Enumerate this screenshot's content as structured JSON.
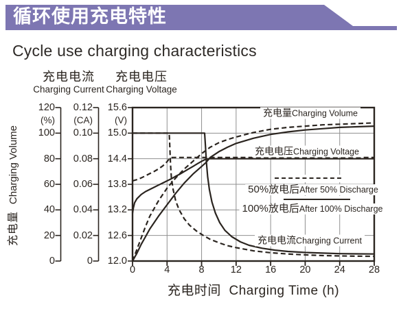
{
  "header": {
    "title_zh": "循环使用充电特性",
    "subtitle_en": "Cycle use charging characteristics"
  },
  "colors": {
    "banner": "#7d76b2",
    "curve": "#2a241f",
    "grid": "#8f8f8f",
    "text": "#2b2520"
  },
  "chart_data": {
    "type": "line",
    "title": "Cycle use charging characteristics",
    "grid": true,
    "x_axis": {
      "title_zh": "充电时间",
      "title_en": "Charging Time (h)",
      "range": [
        0,
        28
      ],
      "ticks": [
        "0",
        "4",
        "8",
        "12",
        "16",
        "20",
        "24",
        "28"
      ]
    },
    "y_axes": [
      {
        "id": "volume",
        "zh": "充电量",
        "en": "Charging Volume",
        "unit": "(%)",
        "range": [
          0,
          120
        ],
        "ticks": [
          "120",
          "100",
          "80",
          "60",
          "40",
          "20",
          "0"
        ]
      },
      {
        "id": "current",
        "zh": "充电电流",
        "en": "Charging Current",
        "unit": "(CA)",
        "range": [
          0,
          0.12
        ],
        "ticks": [
          "0.12",
          "0.10",
          "0.08",
          "0.06",
          "0.04",
          "0.02",
          "0"
        ]
      },
      {
        "id": "voltage",
        "zh": "充电电压",
        "en": "Charging Voltage",
        "unit": "(V)",
        "range": [
          12.0,
          15.6
        ],
        "ticks": [
          "15.6",
          "15.0",
          "14.4",
          "13.8",
          "13.2",
          "12.6",
          "12.0"
        ]
      }
    ],
    "plot_labels": [
      {
        "id": "volume-label",
        "zh": "充电量",
        "en": "Charging Volume"
      },
      {
        "id": "voltage-label",
        "zh": "充电电压",
        "en": "Charging Voltage"
      },
      {
        "id": "current-label",
        "zh": "充电电流",
        "en": "Charging Current"
      }
    ],
    "legend": {
      "entries": [
        {
          "zh": "50%放电后",
          "en": "After 50% Discharge",
          "style": "dashed"
        },
        {
          "zh": "100%放电后",
          "en": "After 100% Discharge",
          "style": "solid"
        }
      ]
    },
    "series": [
      {
        "name": "charging-volume-after-100pct-discharge",
        "axis": "volume",
        "style": "solid",
        "points": [
          [
            0,
            0
          ],
          [
            0.5,
            6
          ],
          [
            1,
            13
          ],
          [
            1.5,
            19
          ],
          [
            2,
            25
          ],
          [
            3,
            35
          ],
          [
            4,
            44
          ],
          [
            5,
            53
          ],
          [
            6,
            61
          ],
          [
            7,
            68
          ],
          [
            8,
            74
          ],
          [
            8.5,
            77
          ],
          [
            9,
            81
          ],
          [
            10,
            85.5
          ],
          [
            11,
            89
          ],
          [
            12,
            92
          ],
          [
            14,
            96
          ],
          [
            16,
            99
          ],
          [
            18,
            101
          ],
          [
            20,
            102.5
          ],
          [
            22,
            103.5
          ],
          [
            24,
            104.5
          ],
          [
            26,
            105
          ],
          [
            28,
            105.5
          ]
        ]
      },
      {
        "name": "charging-volume-after-50pct-discharge",
        "axis": "volume",
        "style": "dashed",
        "points": [
          [
            0,
            0
          ],
          [
            0.5,
            9
          ],
          [
            1,
            18
          ],
          [
            1.5,
            27
          ],
          [
            2,
            35
          ],
          [
            2.5,
            41
          ],
          [
            3,
            47
          ],
          [
            3.5,
            52
          ],
          [
            4,
            57
          ],
          [
            4.5,
            61
          ],
          [
            5,
            65
          ],
          [
            6,
            72
          ],
          [
            7,
            78
          ],
          [
            8,
            84
          ],
          [
            9,
            89
          ],
          [
            10,
            92.5
          ],
          [
            11,
            95
          ],
          [
            12,
            97
          ],
          [
            14,
            100.5
          ],
          [
            16,
            103
          ],
          [
            18,
            104.5
          ],
          [
            20,
            105.5
          ],
          [
            22,
            106.5
          ],
          [
            24,
            107
          ],
          [
            26,
            107.5
          ],
          [
            28,
            108
          ]
        ]
      },
      {
        "name": "charging-voltage-after-100pct-discharge",
        "axis": "voltage",
        "style": "solid",
        "points": [
          [
            0,
            13.12
          ],
          [
            0.1,
            13.25
          ],
          [
            0.25,
            13.37
          ],
          [
            0.5,
            13.46
          ],
          [
            1,
            13.56
          ],
          [
            1.5,
            13.63
          ],
          [
            2,
            13.68
          ],
          [
            2.5,
            13.73
          ],
          [
            3,
            13.78
          ],
          [
            3.5,
            13.83
          ],
          [
            4,
            13.88
          ],
          [
            4.5,
            13.93
          ],
          [
            5,
            13.99
          ],
          [
            5.5,
            14.04
          ],
          [
            6,
            14.1
          ],
          [
            6.5,
            14.16
          ],
          [
            7,
            14.22
          ],
          [
            7.5,
            14.28
          ],
          [
            8,
            14.34
          ],
          [
            8.5,
            14.39
          ],
          [
            8.8,
            14.4
          ],
          [
            28,
            14.4
          ]
        ]
      },
      {
        "name": "charging-voltage-after-50pct-discharge",
        "axis": "voltage",
        "style": "dashed",
        "points": [
          [
            0,
            13.88
          ],
          [
            0.5,
            13.91
          ],
          [
            1,
            13.95
          ],
          [
            1.5,
            14.0
          ],
          [
            2,
            14.05
          ],
          [
            2.5,
            14.1
          ],
          [
            3,
            14.16
          ],
          [
            3.5,
            14.23
          ],
          [
            4,
            14.33
          ],
          [
            4.3,
            14.41
          ],
          [
            4.6,
            14.43
          ],
          [
            28,
            14.43
          ]
        ]
      },
      {
        "name": "charging-current-after-100pct-discharge",
        "axis": "current",
        "style": "solid",
        "points": [
          [
            0,
            0.1
          ],
          [
            8.35,
            0.1
          ],
          [
            8.45,
            0.09
          ],
          [
            8.55,
            0.078
          ],
          [
            8.7,
            0.066
          ],
          [
            8.9,
            0.056
          ],
          [
            9.2,
            0.046
          ],
          [
            9.6,
            0.0375
          ],
          [
            10.1,
            0.03
          ],
          [
            10.7,
            0.024
          ],
          [
            11.5,
            0.019
          ],
          [
            12.5,
            0.015
          ],
          [
            13.5,
            0.0123
          ],
          [
            15,
            0.01
          ],
          [
            16.5,
            0.0085
          ],
          [
            18,
            0.0075
          ],
          [
            20,
            0.0067
          ],
          [
            22,
            0.0062
          ],
          [
            24,
            0.0058
          ],
          [
            26,
            0.0056
          ],
          [
            28,
            0.0055
          ]
        ]
      },
      {
        "name": "charging-current-after-50pct-discharge",
        "axis": "current",
        "style": "dashed",
        "points": [
          [
            0,
            0.1
          ],
          [
            4.25,
            0.1
          ],
          [
            4.3,
            0.092
          ],
          [
            4.4,
            0.076
          ],
          [
            4.5,
            0.065
          ],
          [
            4.7,
            0.056
          ],
          [
            5,
            0.047
          ],
          [
            5.4,
            0.04
          ],
          [
            6,
            0.033
          ],
          [
            6.6,
            0.028
          ],
          [
            7.4,
            0.0235
          ],
          [
            8.2,
            0.02
          ],
          [
            9,
            0.017
          ],
          [
            10,
            0.0143
          ],
          [
            11,
            0.012
          ],
          [
            12,
            0.0105
          ],
          [
            14,
            0.008
          ],
          [
            16,
            0.0065
          ],
          [
            18,
            0.0055
          ],
          [
            20,
            0.0048
          ],
          [
            22,
            0.0043
          ],
          [
            24,
            0.004
          ],
          [
            26,
            0.0038
          ],
          [
            28,
            0.0037
          ]
        ]
      }
    ]
  }
}
